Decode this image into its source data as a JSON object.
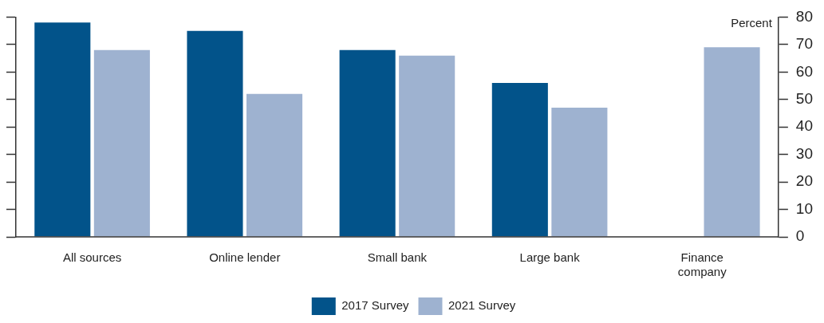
{
  "chart_data": {
    "type": "bar",
    "ylabel": "Percent",
    "categories": [
      "All sources",
      "Online lender",
      "Small bank",
      "Large bank",
      "Finance company"
    ],
    "series": [
      {
        "name": "2017 Survey",
        "color": "#02538a",
        "values": [
          78,
          75,
          68,
          56,
          null
        ]
      },
      {
        "name": "2021 Survey",
        "color": "#9eb2d0",
        "values": [
          68,
          52,
          66,
          47,
          69
        ]
      }
    ],
    "ylim": [
      0,
      80
    ],
    "yticks": [
      0,
      10,
      20,
      30,
      40,
      50,
      60,
      70,
      80
    ],
    "grid": false,
    "legend": "bottom"
  }
}
